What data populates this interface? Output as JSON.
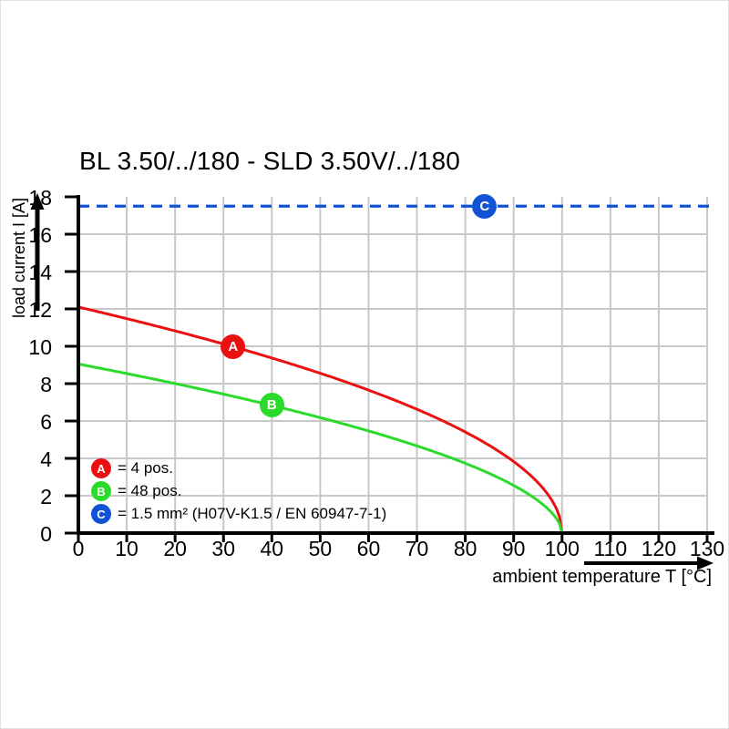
{
  "title": "BL 3.50/../180 - SLD 3.50V/../180",
  "colors": {
    "curve_a_red": "#ea1010",
    "curve_b_green": "#2bdb2b",
    "line_c_blue": "#1253d6",
    "grid": "#c8c8c8",
    "axis": "#000000",
    "background": "#ffffff"
  },
  "chart_data": {
    "type": "line",
    "title": "BL 3.50/../180 - SLD 3.50V/../180",
    "xlabel": "ambient temperature T [°C]",
    "ylabel": "load current I [A]",
    "xlim": [
      0,
      130
    ],
    "ylim": [
      0,
      18
    ],
    "x_ticks": [
      0,
      10,
      20,
      30,
      40,
      50,
      60,
      70,
      80,
      90,
      100,
      110,
      120,
      130
    ],
    "y_ticks": [
      0,
      2,
      4,
      6,
      8,
      10,
      12,
      14,
      16,
      18
    ],
    "grid": true,
    "legend_position": "bottom-left-inside",
    "series": [
      {
        "id": "A",
        "label": "= 4 pos.",
        "color": "#ea1010",
        "kind": "derating-curve",
        "model": "I = I0 * (1 - T/Tmax)^p",
        "I0": 12.1,
        "Tmax": 100,
        "p": 0.5,
        "marker_T": 32,
        "points": [
          [
            0,
            12.1
          ],
          [
            10,
            11.5
          ],
          [
            20,
            10.8
          ],
          [
            30,
            10.1
          ],
          [
            40,
            9.4
          ],
          [
            50,
            8.6
          ],
          [
            60,
            7.7
          ],
          [
            70,
            6.6
          ],
          [
            80,
            5.4
          ],
          [
            90,
            3.8
          ],
          [
            100,
            0
          ]
        ]
      },
      {
        "id": "B",
        "label": "= 48 pos.",
        "color": "#2bdb2b",
        "kind": "derating-curve",
        "model": "I = I0 * (1 - T/Tmax)^p",
        "I0": 9.05,
        "Tmax": 100,
        "p": 0.55,
        "marker_T": 40,
        "points": [
          [
            0,
            9.05
          ],
          [
            10,
            8.5
          ],
          [
            20,
            8.0
          ],
          [
            30,
            7.4
          ],
          [
            40,
            6.8
          ],
          [
            50,
            6.2
          ],
          [
            60,
            5.5
          ],
          [
            70,
            4.7
          ],
          [
            80,
            3.7
          ],
          [
            90,
            2.6
          ],
          [
            100,
            0
          ]
        ]
      },
      {
        "id": "C",
        "label": "= 1.5 mm² (H07V-K1.5 / EN 60947-7-1)",
        "color": "#1253d6",
        "kind": "hline-dashed",
        "value": 17.5,
        "marker_T": 84
      }
    ]
  }
}
